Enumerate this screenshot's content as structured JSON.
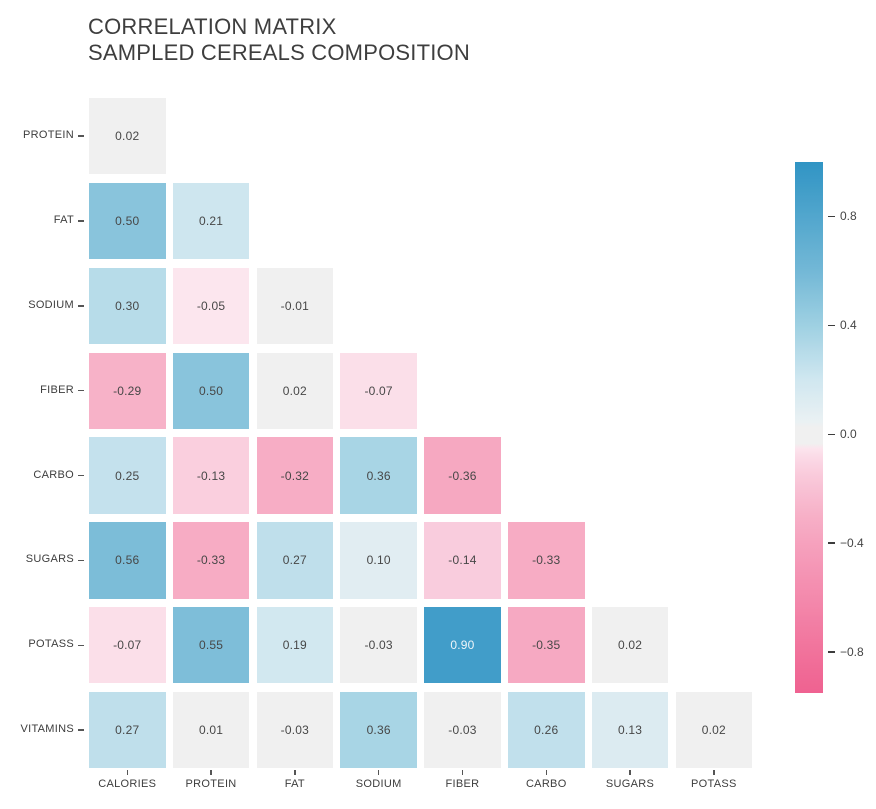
{
  "chart_data": {
    "type": "heatmap",
    "variant": "correlation-matrix-lower-triangle",
    "title_line1": "CORRELATION MATRIX",
    "title_line2": "SAMPLED CEREALS COMPOSITION",
    "rows": [
      "PROTEIN",
      "FAT",
      "SODIUM",
      "FIBER",
      "CARBO",
      "SUGARS",
      "POTASS",
      "VITAMINS"
    ],
    "columns": [
      "CALORIES",
      "PROTEIN",
      "FAT",
      "SODIUM",
      "FIBER",
      "CARBO",
      "SUGARS",
      "POTASS"
    ],
    "values": [
      [
        0.02
      ],
      [
        0.5,
        0.21
      ],
      [
        0.3,
        -0.05,
        -0.01
      ],
      [
        -0.29,
        0.5,
        0.02,
        -0.07
      ],
      [
        0.25,
        -0.13,
        -0.32,
        0.36,
        -0.36
      ],
      [
        0.56,
        -0.33,
        0.27,
        0.1,
        -0.14,
        -0.33
      ],
      [
        -0.07,
        0.55,
        0.19,
        -0.03,
        0.9,
        -0.35,
        0.02
      ],
      [
        0.27,
        0.01,
        -0.03,
        0.36,
        -0.03,
        0.26,
        0.13,
        0.02
      ]
    ],
    "value_decimals": 2,
    "grid": "off",
    "legend_position": "right-colorbar",
    "colorbar": {
      "tick_labels": [
        "0.8",
        "0.4",
        "0.0",
        "−0.4",
        "−0.8"
      ],
      "tick_values": [
        0.8,
        0.4,
        0.0,
        -0.4,
        -0.8
      ],
      "vmax": 1.0,
      "vmin": -0.95
    },
    "palette": {
      "zero_gray": "#f0f0f0",
      "zero_halfwidth": 0.035,
      "positive_stops": [
        [
          0.04,
          "#ebf1f3"
        ],
        [
          0.2,
          "#d0e7f0"
        ],
        [
          0.4,
          "#9ed0e2"
        ],
        [
          0.6,
          "#73b8d6"
        ],
        [
          1.0,
          "#3094c4"
        ]
      ],
      "negative_stops": [
        [
          -0.04,
          "#fce9f0"
        ],
        [
          -0.08,
          "#fbdbe7"
        ],
        [
          -0.15,
          "#f9cadb"
        ],
        [
          -0.3,
          "#f7b0c7"
        ],
        [
          -0.45,
          "#f59bb9"
        ],
        [
          -0.8,
          "#f1729b"
        ],
        [
          -1.0,
          "#ee5c8d"
        ]
      ],
      "annotation_text": "#474747",
      "annotation_text_on_dark": "#eef5f9",
      "axis_label_text": "#3d3d3d",
      "tick_mark_color": "#555555",
      "title_text": "#3e3e3e"
    }
  }
}
